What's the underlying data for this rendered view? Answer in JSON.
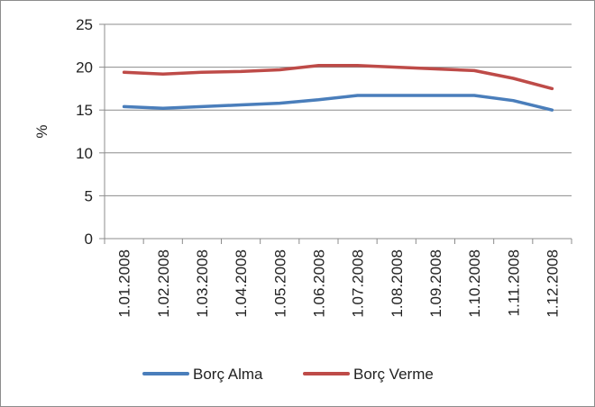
{
  "chart_data": {
    "type": "line",
    "title": "",
    "xlabel": "",
    "ylabel": "%",
    "ylim": [
      0,
      25
    ],
    "yticks": [
      0,
      5,
      10,
      15,
      20,
      25
    ],
    "grid": true,
    "legend_position": "bottom",
    "categories": [
      "1.01.2008",
      "1.02.2008",
      "1.03.2008",
      "1.04.2008",
      "1.05.2008",
      "1.06.2008",
      "1.07.2008",
      "1.08.2008",
      "1.09.2008",
      "1.10.2008",
      "1.11.2008",
      "1.12.2008"
    ],
    "series": [
      {
        "name": "Borç Alma",
        "color": "#4a7ebb",
        "values": [
          15.4,
          15.2,
          15.4,
          15.6,
          15.8,
          16.2,
          16.7,
          16.7,
          16.7,
          16.7,
          16.1,
          15.0
        ]
      },
      {
        "name": "Borç Verme",
        "color": "#be4b48",
        "values": [
          19.4,
          19.2,
          19.4,
          19.5,
          19.7,
          20.2,
          20.2,
          20.0,
          19.8,
          19.6,
          18.7,
          17.5
        ]
      }
    ]
  }
}
